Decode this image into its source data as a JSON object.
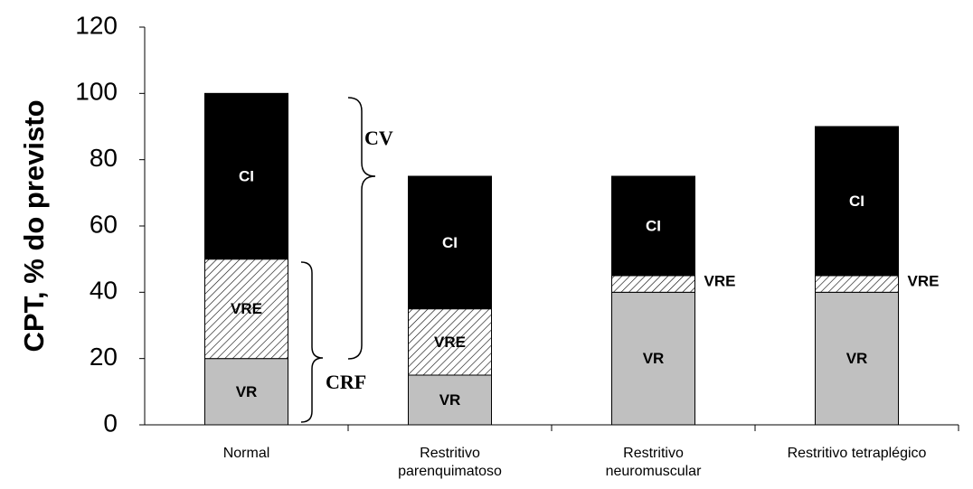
{
  "chart_data": {
    "type": "stacked_bar",
    "ylabel": "CPT, % do previsto",
    "categories": [
      [
        "Normal"
      ],
      [
        "Restritivo",
        "parenquimatoso"
      ],
      [
        "Restritivo",
        "neuromuscular"
      ],
      [
        "Restritivo tetraplégico"
      ]
    ],
    "series": [
      {
        "name": "VR",
        "color": "#c0c0c0",
        "values": [
          20,
          15,
          40,
          40
        ]
      },
      {
        "name": "VRE",
        "color": "#ffffff",
        "hatch": true,
        "values": [
          30,
          20,
          5,
          5
        ]
      },
      {
        "name": "CI",
        "color": "#000000",
        "values": [
          50,
          40,
          30,
          45
        ]
      }
    ],
    "annotations": [
      "CV",
      "CRF"
    ],
    "ylim": [
      0,
      120
    ],
    "yticks": [
      0,
      20,
      40,
      60,
      80,
      100,
      120
    ],
    "grid": false
  }
}
